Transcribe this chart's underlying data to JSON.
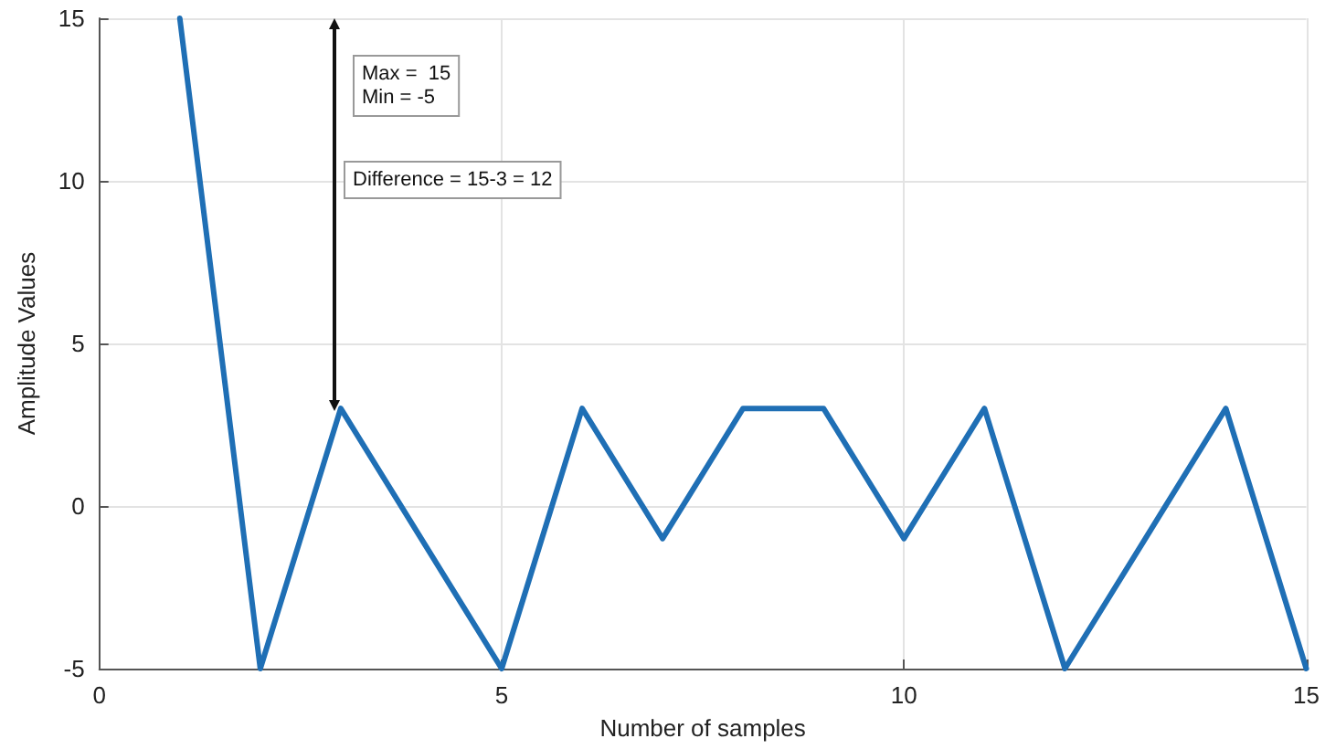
{
  "chart_data": {
    "type": "line",
    "x": [
      1,
      2,
      3,
      4,
      5,
      6,
      7,
      8,
      9,
      10,
      11,
      12,
      13,
      14,
      15
    ],
    "series": [
      {
        "color": "#1f6fb5",
        "values": [
          15,
          -5,
          3,
          -1,
          -5,
          3,
          -1,
          3,
          3,
          -1,
          3,
          -5,
          -1,
          3,
          -5
        ]
      }
    ],
    "xlabel": "Number of samples",
    "ylabel": "Amplitude Values",
    "xlim": [
      0,
      15
    ],
    "xticks": [
      0,
      5,
      10,
      15
    ],
    "ylim": [
      -5,
      15
    ],
    "yticks": [
      -5,
      0,
      5,
      10,
      15
    ],
    "grid": true,
    "marker": "none",
    "line_style": "solid",
    "annotations": [
      "Max =  15\nMin = -5",
      "Difference = 15-3 = 12"
    ]
  }
}
